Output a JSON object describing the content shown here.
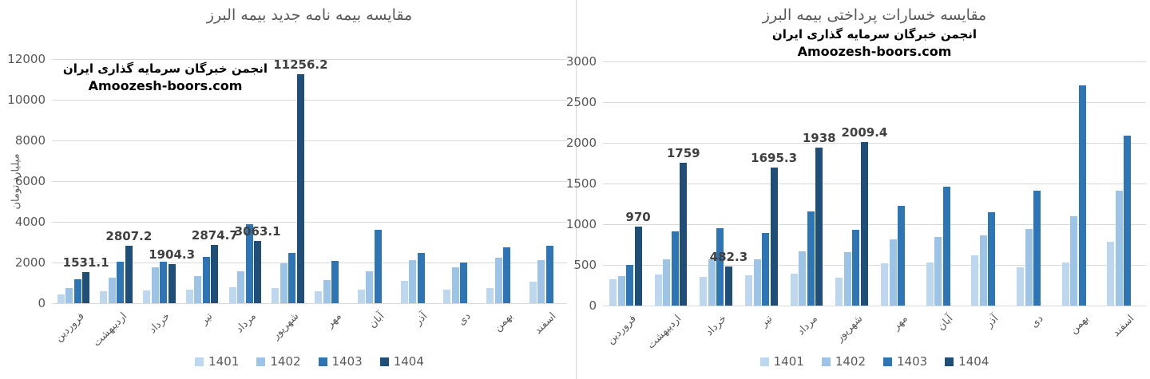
{
  "watermark": {
    "line1": "انجمن خبرگان سرمایه گذاری ایران",
    "line2": "Amoozesh-boors.com"
  },
  "legend": [
    "1401",
    "1402",
    "1403",
    "1404"
  ],
  "colors": {
    "series": [
      "#BDD7EE",
      "#9DC3E6",
      "#2E75B6",
      "#1F4E79"
    ],
    "title": "#595959",
    "axis_text": "#595959",
    "data_label": "#404040",
    "gridline": "#D9D9D9",
    "watermark": "#000000"
  },
  "chart_data": [
    {
      "type": "bar",
      "title": "مقایسه بیمه نامه جدید بیمه البرز",
      "ylabel": "میلیارد تومان",
      "ylim": [
        0,
        12000
      ],
      "ytick_step": 2000,
      "grid": true,
      "legend_position": "bottom",
      "categories": [
        "فروردین",
        "اردیبهشت",
        "خرداد",
        "تیر",
        "مرداد",
        "شهریور",
        "مهر",
        "آبان",
        "آذر",
        "دی",
        "بهمن",
        "اسفند"
      ],
      "series": [
        {
          "name": "1401",
          "values": [
            420,
            570,
            620,
            680,
            800,
            760,
            590,
            660,
            1110,
            680,
            750,
            1050
          ]
        },
        {
          "name": "1402",
          "values": [
            750,
            1250,
            1750,
            1350,
            1570,
            1950,
            1150,
            1580,
            2130,
            1760,
            2230,
            2130
          ]
        },
        {
          "name": "1403",
          "values": [
            1160,
            2040,
            2050,
            2280,
            3900,
            2480,
            2080,
            3620,
            2490,
            1990,
            2730,
            2820
          ]
        },
        {
          "name": "1404",
          "values": [
            1531.1,
            2807.2,
            1904.3,
            2874.7,
            3063.1,
            11256.2,
            null,
            null,
            null,
            null,
            null,
            null
          ],
          "labels": [
            "1531.1",
            "2807.2",
            "1904.3",
            "2874.7",
            "3063.1",
            "11256.2",
            null,
            null,
            null,
            null,
            null,
            null
          ]
        }
      ]
    },
    {
      "type": "bar",
      "title": "مقایسه خسارات پرداختی بیمه البرز",
      "ylabel": "",
      "ylim": [
        0,
        3000
      ],
      "ytick_step": 500,
      "grid": true,
      "legend_position": "bottom",
      "categories": [
        "فروردین",
        "اردیبهشت",
        "خرداد",
        "تیر",
        "مرداد",
        "شهریور",
        "مهر",
        "آبان",
        "آذر",
        "دی",
        "بهمن",
        "اسفند"
      ],
      "series": [
        {
          "name": "1401",
          "values": [
            320,
            385,
            355,
            370,
            395,
            340,
            515,
            525,
            620,
            470,
            530,
            785
          ]
        },
        {
          "name": "1402",
          "values": [
            360,
            570,
            565,
            570,
            670,
            660,
            815,
            840,
            865,
            940,
            1095,
            1415
          ]
        },
        {
          "name": "1403",
          "values": [
            505,
            915,
            955,
            895,
            1155,
            935,
            1230,
            1465,
            1145,
            1415,
            2710,
            2090
          ]
        },
        {
          "name": "1404",
          "values": [
            970,
            1759,
            482.3,
            1695.3,
            1938,
            2009.4,
            null,
            null,
            null,
            null,
            null,
            null
          ],
          "labels": [
            "970",
            "1759",
            "482.3",
            "1695.3",
            "1938",
            "2009.4",
            null,
            null,
            null,
            null,
            null,
            null
          ]
        }
      ]
    }
  ]
}
